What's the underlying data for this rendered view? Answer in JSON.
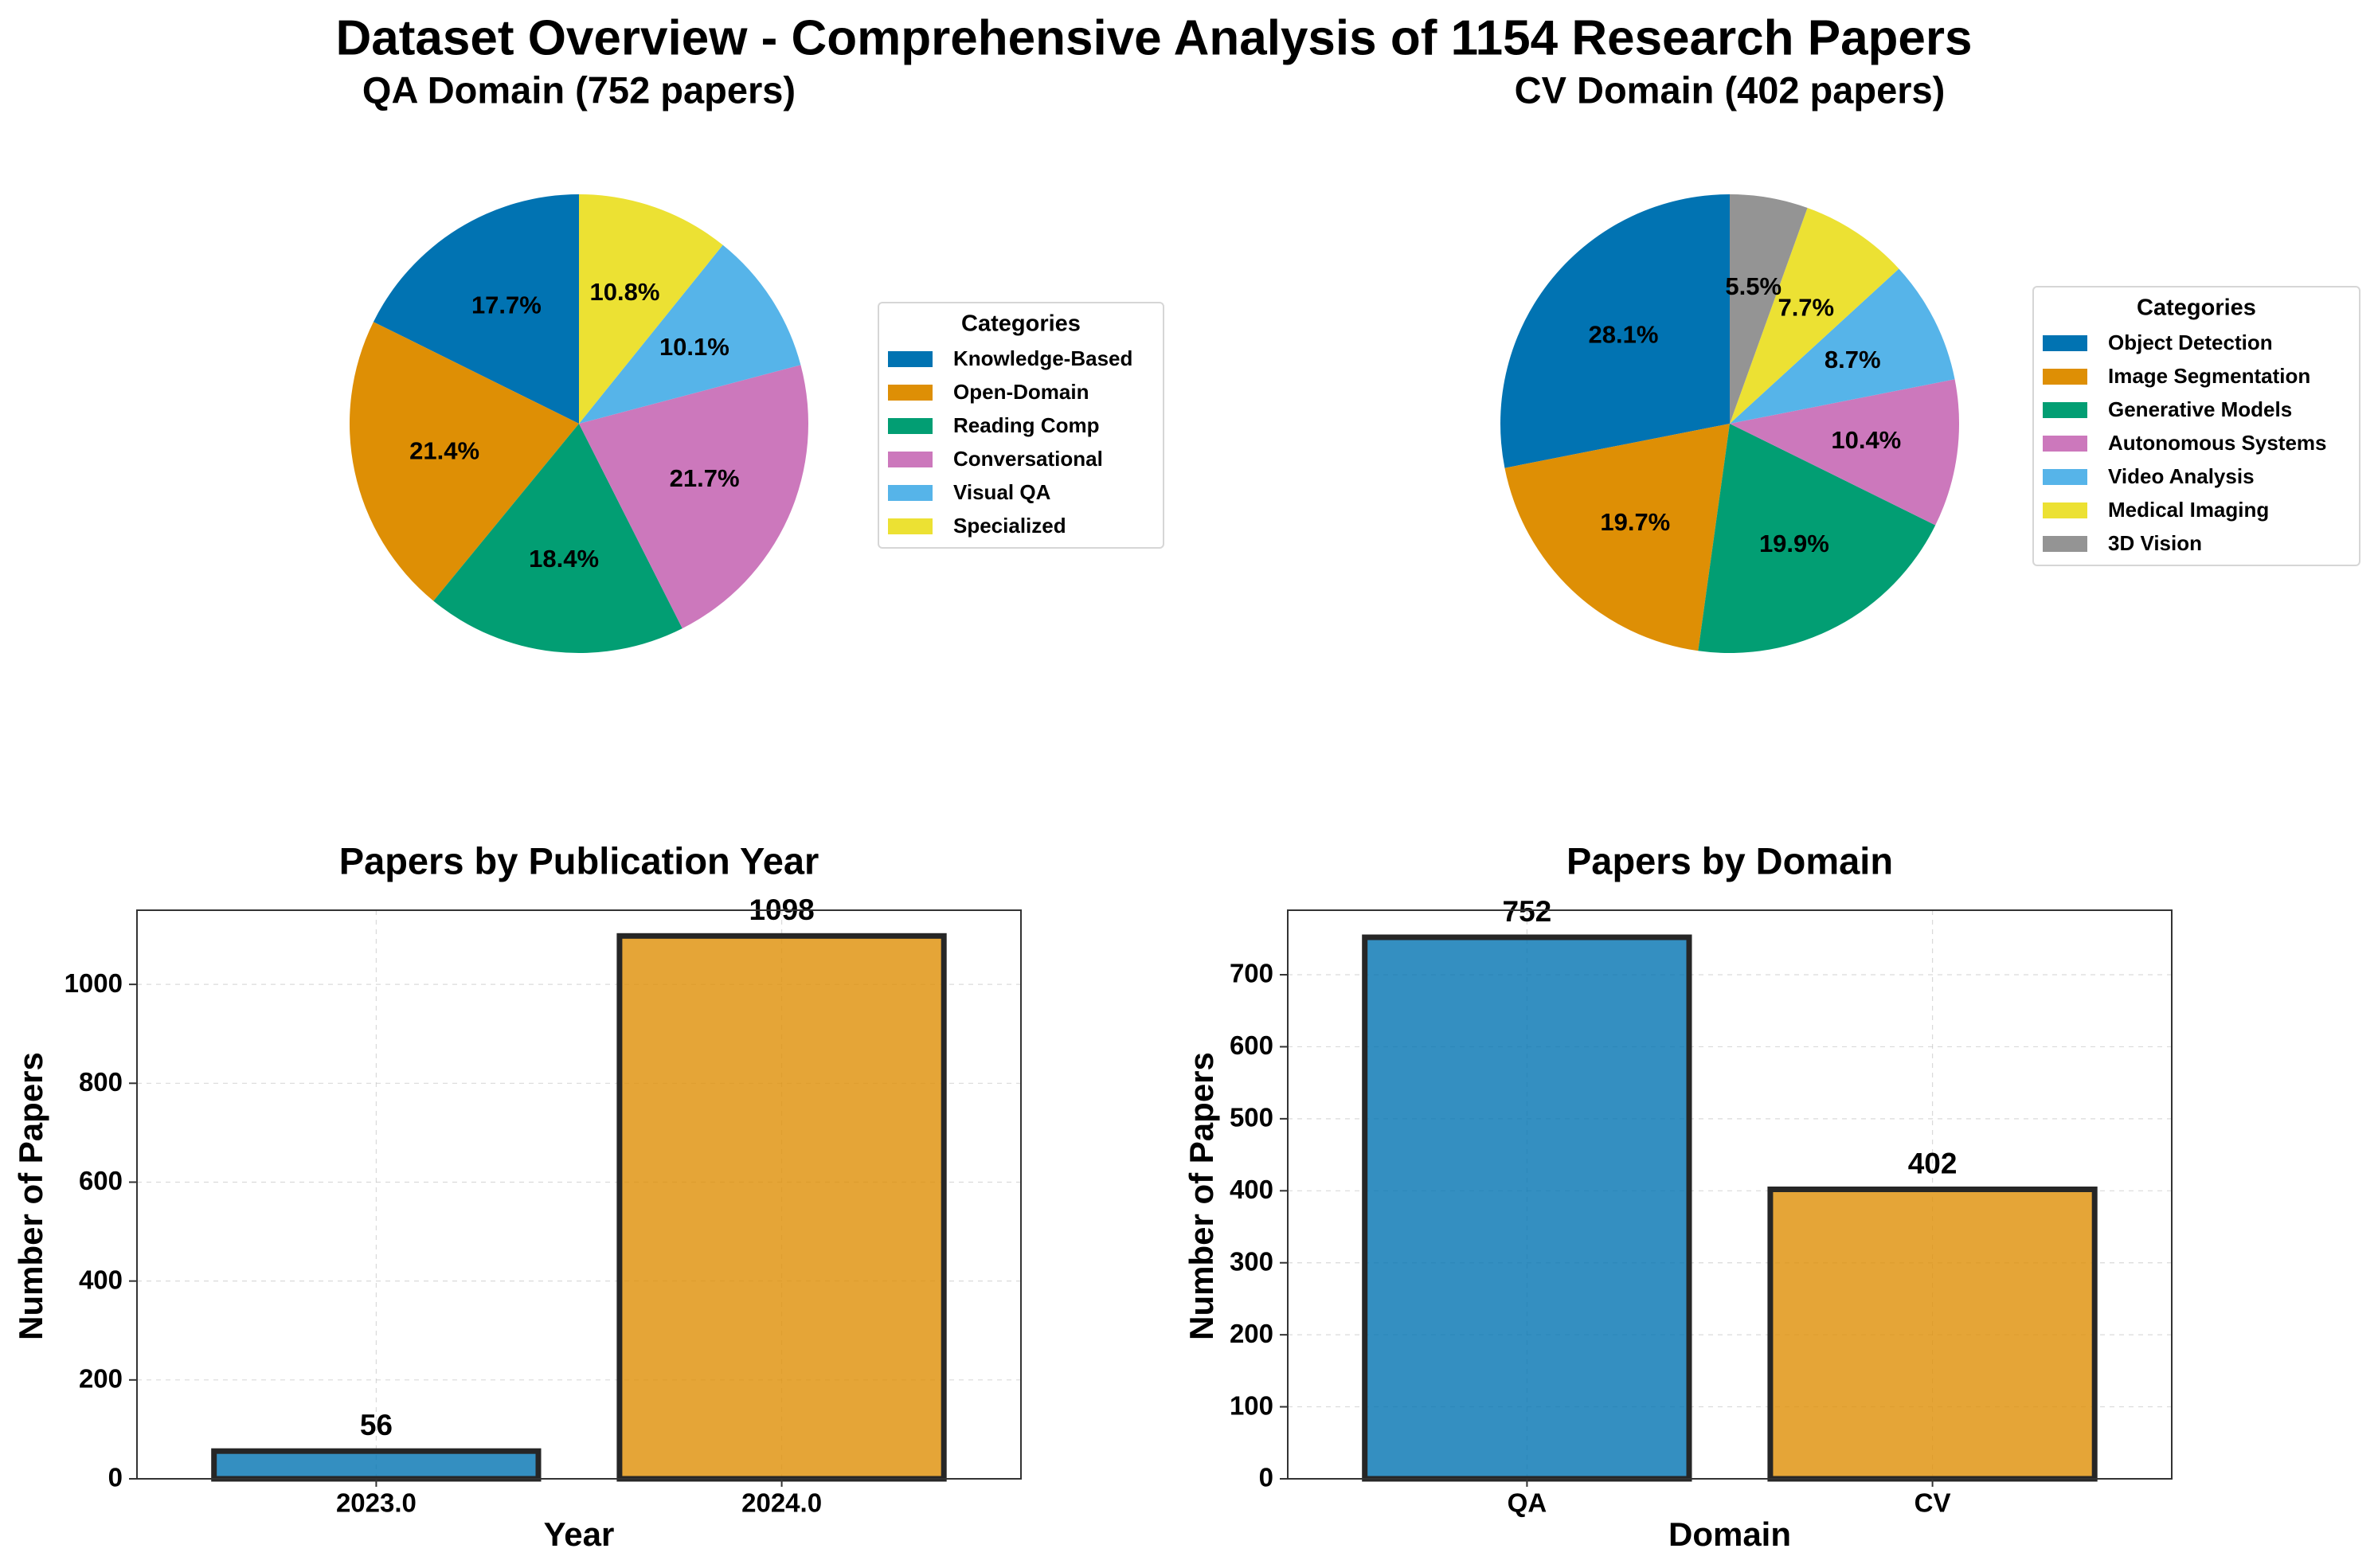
{
  "figure": {
    "title": "Dataset Overview - Comprehensive Analysis of 1154 Research Papers"
  },
  "colors": {
    "blue": "#0173B2",
    "orange": "#DE8F05",
    "green": "#029E73",
    "pink": "#CC78BC",
    "sky": "#56B4E9",
    "yellow": "#ECE133",
    "gray": "#949494"
  },
  "chart_data": [
    {
      "type": "pie",
      "title": "QA Domain (752 papers)",
      "legend_title": "Categories",
      "legend_position": "right",
      "start_angle_deg": 90,
      "direction": "counterclockwise",
      "categories": [
        "Knowledge-Based",
        "Open-Domain",
        "Reading Comp",
        "Conversational",
        "Visual QA",
        "Specialized"
      ],
      "values": [
        17.7,
        21.4,
        18.4,
        21.7,
        10.1,
        10.8
      ],
      "labels": [
        "17.7%",
        "21.4%",
        "18.4%",
        "21.7%",
        "10.1%",
        "10.8%"
      ],
      "colors": [
        "#0173B2",
        "#DE8F05",
        "#029E73",
        "#CC78BC",
        "#56B4E9",
        "#ECE133"
      ]
    },
    {
      "type": "pie",
      "title": "CV Domain (402 papers)",
      "legend_title": "Categories",
      "legend_position": "right",
      "start_angle_deg": 90,
      "direction": "counterclockwise",
      "categories": [
        "Object Detection",
        "Image Segmentation",
        "Generative Models",
        "Autonomous Systems",
        "Video Analysis",
        "Medical Imaging",
        "3D Vision"
      ],
      "values": [
        28.1,
        19.7,
        19.9,
        10.4,
        8.7,
        7.7,
        5.5
      ],
      "labels": [
        "28.1%",
        "19.7%",
        "19.9%",
        "10.4%",
        "8.7%",
        "7.7%",
        "5.5%"
      ],
      "colors": [
        "#0173B2",
        "#DE8F05",
        "#029E73",
        "#CC78BC",
        "#56B4E9",
        "#ECE133",
        "#949494"
      ]
    },
    {
      "type": "bar",
      "title": "Papers by Publication Year",
      "xlabel": "Year",
      "ylabel": "Number of Papers",
      "categories": [
        "2023.0",
        "2024.0"
      ],
      "values": [
        56,
        1098
      ],
      "value_labels": [
        "56",
        "1098"
      ],
      "ylim": [
        0,
        1150
      ],
      "yticks": [
        0,
        200,
        400,
        600,
        800,
        1000
      ],
      "ytick_labels": [
        "0",
        "200",
        "400",
        "600",
        "800",
        "1000"
      ],
      "grid": true,
      "colors": [
        "#0173B2",
        "#DE8F05"
      ]
    },
    {
      "type": "bar",
      "title": "Papers by Domain",
      "xlabel": "Domain",
      "ylabel": "Number of Papers",
      "categories": [
        "QA",
        "CV"
      ],
      "values": [
        752,
        402
      ],
      "value_labels": [
        "752",
        "402"
      ],
      "ylim": [
        0,
        789.6
      ],
      "yticks": [
        0,
        100,
        200,
        300,
        400,
        500,
        600,
        700
      ],
      "ytick_labels": [
        "0",
        "100",
        "200",
        "300",
        "400",
        "500",
        "600",
        "700"
      ],
      "grid": true,
      "colors": [
        "#0173B2",
        "#DE8F05"
      ]
    }
  ]
}
